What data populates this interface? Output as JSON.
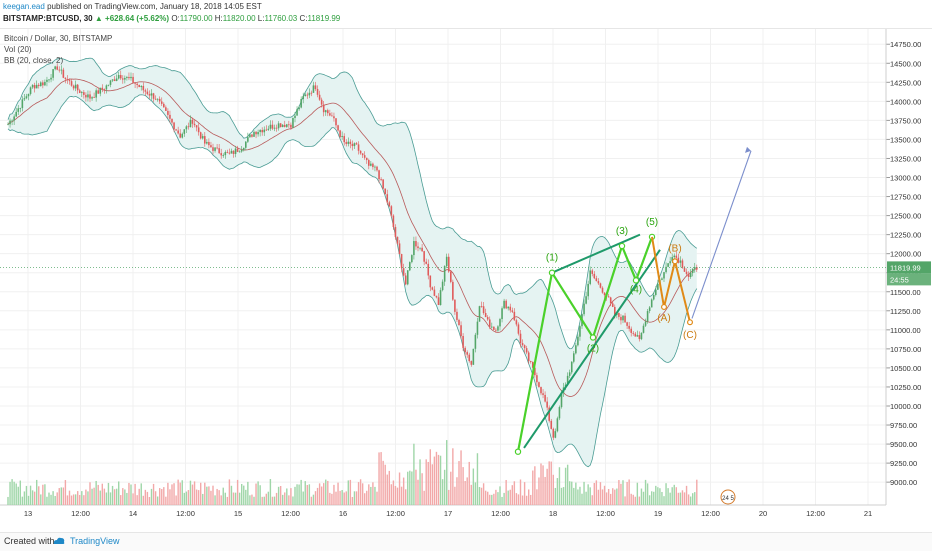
{
  "header": {
    "author": "keegan.ead",
    "published_text": "published on TradingView.com, January 18, 2018 14:05 EST",
    "symbol": "BITSTAMP:BTCUSD, 30",
    "change": "+628.64 (+5.62%)",
    "open_label": "O:",
    "open": "11790.00",
    "high_label": "H:",
    "high": "11820.00",
    "low_label": "L:",
    "low": "11760.03",
    "close_label": "C:",
    "close": "11819.99"
  },
  "legend": {
    "title": "Bitcoin / Dollar, 30, BITSTAMP",
    "vol": "Vol (20)",
    "bb": "BB (20, close, 2)"
  },
  "footer": {
    "created_with": "Created with",
    "brand": "TradingView"
  },
  "chart_data": {
    "type": "candlestick",
    "title": "Bitcoin / Dollar, 30, BITSTAMP",
    "x_ticks": [
      "13",
      "12:00",
      "14",
      "12:00",
      "15",
      "12:00",
      "16",
      "12:00",
      "17",
      "12:00",
      "18",
      "12:00",
      "19",
      "12:00",
      "20",
      "12:00",
      "21"
    ],
    "y_ticks": [
      9000,
      9250,
      9500,
      9750,
      10000,
      10250,
      10500,
      10750,
      11000,
      11250,
      11500,
      11750,
      12000,
      12250,
      12500,
      12750,
      13000,
      13250,
      13500,
      13750,
      14000,
      14250,
      14500,
      14750
    ],
    "ylim": [
      8700,
      14950
    ],
    "last_price": "11819.99",
    "countdown": "24:55",
    "price_path": [
      [
        0,
        13700
      ],
      [
        6,
        13950
      ],
      [
        12,
        14200
      ],
      [
        18,
        14250
      ],
      [
        24,
        14450
      ],
      [
        28,
        14300
      ],
      [
        34,
        14150
      ],
      [
        40,
        14050
      ],
      [
        48,
        14200
      ],
      [
        54,
        14350
      ],
      [
        60,
        14280
      ],
      [
        66,
        14150
      ],
      [
        72,
        14050
      ],
      [
        78,
        13800
      ],
      [
        84,
        13550
      ],
      [
        90,
        13750
      ],
      [
        96,
        13450
      ],
      [
        102,
        13350
      ],
      [
        108,
        13300
      ],
      [
        114,
        13400
      ],
      [
        120,
        13600
      ],
      [
        126,
        13650
      ],
      [
        132,
        13700
      ],
      [
        138,
        13700
      ],
      [
        144,
        14050
      ],
      [
        150,
        14200
      ],
      [
        154,
        13900
      ],
      [
        158,
        13800
      ],
      [
        164,
        13450
      ],
      [
        170,
        13400
      ],
      [
        176,
        13150
      ],
      [
        180,
        13100
      ],
      [
        186,
        12600
      ],
      [
        190,
        12100
      ],
      [
        194,
        11600
      ],
      [
        198,
        12150
      ],
      [
        202,
        12050
      ],
      [
        206,
        11600
      ],
      [
        210,
        11350
      ],
      [
        214,
        11950
      ],
      [
        218,
        11250
      ],
      [
        222,
        10800
      ],
      [
        226,
        10550
      ],
      [
        230,
        11350
      ],
      [
        234,
        11100
      ],
      [
        238,
        11000
      ],
      [
        242,
        11350
      ],
      [
        246,
        11250
      ],
      [
        250,
        10850
      ],
      [
        254,
        10600
      ],
      [
        258,
        10350
      ],
      [
        262,
        10050
      ],
      [
        266,
        9600
      ],
      [
        268,
        9800
      ],
      [
        270,
        10150
      ],
      [
        272,
        10300
      ],
      [
        276,
        10650
      ],
      [
        280,
        11200
      ],
      [
        284,
        11750
      ],
      [
        288,
        11600
      ],
      [
        292,
        11450
      ],
      [
        296,
        11200
      ],
      [
        300,
        11150
      ],
      [
        304,
        11000
      ],
      [
        308,
        10850
      ],
      [
        312,
        11250
      ],
      [
        316,
        11550
      ],
      [
        320,
        11750
      ],
      [
        324,
        12000
      ],
      [
        328,
        11900
      ],
      [
        332,
        11700
      ],
      [
        336,
        11820
      ]
    ],
    "volume_scale": [
      0,
      1
    ],
    "annotations": {
      "wave_labels": [
        "(1)",
        "(2)",
        "(3)",
        "(4)",
        "(5)"
      ],
      "wave_points": [
        [
          9400,
          0
        ],
        [
          11750,
          1
        ],
        [
          10900,
          2
        ],
        [
          12100,
          3
        ],
        [
          11650,
          4
        ],
        [
          12220,
          5
        ]
      ],
      "projection_labels": [
        "(A)",
        "(B)",
        "(C)"
      ],
      "projection_points": [
        [
          11300,
          "(A)"
        ],
        [
          11900,
          "(B)"
        ],
        [
          11100,
          "(C)"
        ],
        [
          13350,
          "target"
        ]
      ],
      "colors": {
        "up": "#53a568",
        "down": "#e05a5a",
        "wave": "#4ad12a",
        "channel": "#1f9a6a",
        "projection": "#e08a17",
        "target_arrow": "#7b8ecc",
        "band_fill": "#e5f3f2",
        "band_line": "#4a9c94",
        "basis_line": "#b85a5a"
      }
    }
  }
}
